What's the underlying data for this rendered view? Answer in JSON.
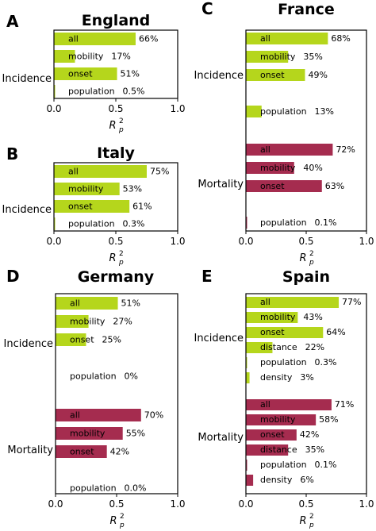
{
  "colors": {
    "incidence": "#b5d61c",
    "mortality": "#a52c4f"
  },
  "xlabel_base": "R",
  "xlabel_sup": "2",
  "xlabel_sub": "p",
  "chart_data": [
    {
      "panel": "A",
      "title": "England",
      "type": "bar",
      "orientation": "horizontal",
      "xlim": [
        0,
        1.0
      ],
      "xticks": [
        "0.0",
        "0.5",
        "1.0"
      ],
      "groups": [
        {
          "name": "Incidence",
          "color": "incidence",
          "bars": [
            {
              "label": "all",
              "value": 0.66,
              "text": "66%"
            },
            {
              "label": "mobility",
              "value": 0.17,
              "text": "17%"
            },
            {
              "label": "onset",
              "value": 0.51,
              "text": "51%"
            },
            {
              "label": "population",
              "value": 0.005,
              "text": "0.5%"
            }
          ]
        }
      ]
    },
    {
      "panel": "B",
      "title": "Italy",
      "type": "bar",
      "orientation": "horizontal",
      "xlim": [
        0,
        1.0
      ],
      "xticks": [
        "0.0",
        "0.5",
        "1.0"
      ],
      "groups": [
        {
          "name": "Incidence",
          "color": "incidence",
          "bars": [
            {
              "label": "all",
              "value": 0.75,
              "text": "75%"
            },
            {
              "label": "mobility",
              "value": 0.53,
              "text": "53%"
            },
            {
              "label": "onset",
              "value": 0.61,
              "text": "61%"
            },
            {
              "label": "population",
              "value": 0.003,
              "text": "0.3%"
            }
          ]
        }
      ]
    },
    {
      "panel": "C",
      "title": "France",
      "type": "bar",
      "orientation": "horizontal",
      "xlim": [
        0,
        1.0
      ],
      "xticks": [
        "0.0",
        "0.5",
        "1.0"
      ],
      "groups": [
        {
          "name": "Incidence",
          "color": "incidence",
          "bars": [
            {
              "label": "all",
              "value": 0.68,
              "text": "68%"
            },
            {
              "label": "mobility",
              "value": 0.35,
              "text": "35%"
            },
            {
              "label": "onset",
              "value": 0.49,
              "text": "49%"
            },
            {
              "label": "",
              "value": 0,
              "text": ""
            },
            {
              "label": "population",
              "value": 0.13,
              "text": "13%"
            }
          ]
        },
        {
          "name": "Mortality",
          "color": "mortality",
          "bars": [
            {
              "label": "all",
              "value": 0.72,
              "text": "72%"
            },
            {
              "label": "mobility",
              "value": 0.4,
              "text": "40%"
            },
            {
              "label": "onset",
              "value": 0.63,
              "text": "63%"
            },
            {
              "label": "",
              "value": 0,
              "text": ""
            },
            {
              "label": "population",
              "value": 0.001,
              "text": "0.1%"
            }
          ]
        }
      ]
    },
    {
      "panel": "D",
      "title": "Germany",
      "type": "bar",
      "orientation": "horizontal",
      "xlim": [
        0,
        1.0
      ],
      "xticks": [
        "0.0",
        "0.5",
        "1.0"
      ],
      "groups": [
        {
          "name": "Incidence",
          "color": "incidence",
          "bars": [
            {
              "label": "all",
              "value": 0.51,
              "text": "51%"
            },
            {
              "label": "mobility",
              "value": 0.27,
              "text": "27%"
            },
            {
              "label": "onset",
              "value": 0.25,
              "text": "25%"
            },
            {
              "label": "",
              "value": 0,
              "text": ""
            },
            {
              "label": "population",
              "value": 0,
              "text": "0%"
            }
          ]
        },
        {
          "name": "Mortality",
          "color": "mortality",
          "bars": [
            {
              "label": "all",
              "value": 0.7,
              "text": "70%"
            },
            {
              "label": "mobility",
              "value": 0.55,
              "text": "55%"
            },
            {
              "label": "onset",
              "value": 0.42,
              "text": "42%"
            },
            {
              "label": "",
              "value": 0,
              "text": ""
            },
            {
              "label": "population",
              "value": 0.0,
              "text": "0.0%"
            }
          ]
        }
      ]
    },
    {
      "panel": "E",
      "title": "Spain",
      "type": "bar",
      "orientation": "horizontal",
      "xlim": [
        0,
        1.0
      ],
      "xticks": [
        "0.0",
        "0.5",
        "1.0"
      ],
      "groups": [
        {
          "name": "Incidence",
          "color": "incidence",
          "bars": [
            {
              "label": "all",
              "value": 0.77,
              "text": "77%"
            },
            {
              "label": "mobility",
              "value": 0.43,
              "text": "43%"
            },
            {
              "label": "onset",
              "value": 0.64,
              "text": "64%"
            },
            {
              "label": "distance",
              "value": 0.22,
              "text": "22%"
            },
            {
              "label": "population",
              "value": 0.003,
              "text": "0.3%"
            },
            {
              "label": "density",
              "value": 0.03,
              "text": "3%"
            }
          ]
        },
        {
          "name": "Mortality",
          "color": "mortality",
          "bars": [
            {
              "label": "all",
              "value": 0.71,
              "text": "71%"
            },
            {
              "label": "mobility",
              "value": 0.58,
              "text": "58%"
            },
            {
              "label": "onset",
              "value": 0.42,
              "text": "42%"
            },
            {
              "label": "distance",
              "value": 0.35,
              "text": "35%"
            },
            {
              "label": "population",
              "value": 0.001,
              "text": "0.1%"
            },
            {
              "label": "density",
              "value": 0.06,
              "text": "6%"
            }
          ]
        }
      ]
    }
  ]
}
